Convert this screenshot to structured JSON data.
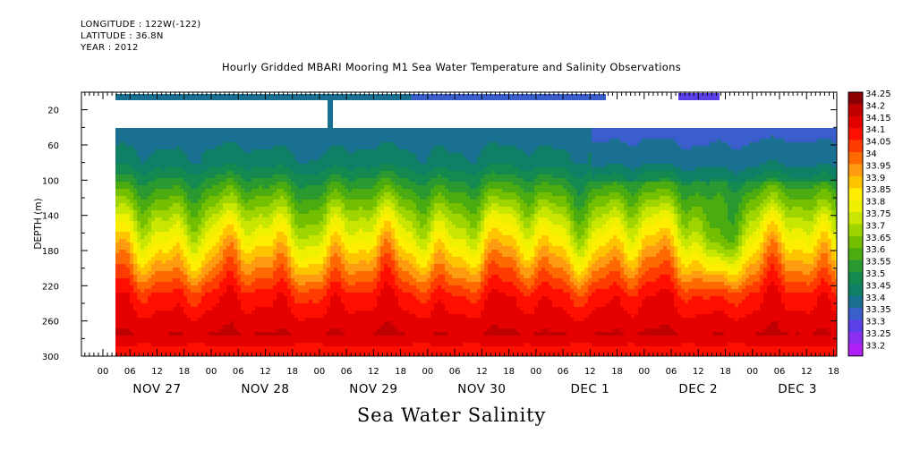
{
  "header": {
    "longitude": "LONGITUDE : 122W(-122)",
    "latitude": "LATITUDE : 36.8N",
    "year": "YEAR : 2012",
    "title": "Hourly Gridded MBARI Mooring M1 Sea Water Temperature and Salinity Observations"
  },
  "subtitle": "Sea Water Salinity",
  "chart_data": {
    "type": "heatmap",
    "title": "Hourly Gridded MBARI Mooring M1 Sea Water Temperature and Salinity Observations",
    "subtitle": "Sea Water Salinity",
    "xlabel": "",
    "ylabel": "DEPTH (m)",
    "x_range_hours": [
      0,
      156
    ],
    "x_ticks": {
      "hour_labels": [
        "00",
        "06",
        "12",
        "18",
        "00",
        "06",
        "12",
        "18",
        "00",
        "06",
        "12",
        "18",
        "00",
        "06",
        "12",
        "18",
        "00",
        "06",
        "12",
        "18",
        "00",
        "06",
        "12",
        "18",
        "00",
        "06",
        "12",
        "18"
      ],
      "hour_values": [
        0,
        6,
        12,
        18,
        24,
        30,
        36,
        42,
        48,
        54,
        60,
        66,
        72,
        78,
        84,
        90,
        96,
        102,
        108,
        114,
        120,
        126,
        132,
        138,
        144,
        150,
        156,
        162
      ],
      "day_labels": [
        {
          "label": "NOV 27",
          "hour": 12
        },
        {
          "label": "NOV 28",
          "hour": 36
        },
        {
          "label": "NOV 29",
          "hour": 60
        },
        {
          "label": "NOV 30",
          "hour": 84
        },
        {
          "label": "DEC  1",
          "hour": 108
        },
        {
          "label": "DEC  2",
          "hour": 132
        },
        {
          "label": "DEC  3",
          "hour": 154
        }
      ]
    },
    "y_range": [
      300,
      0
    ],
    "y_ticks": [
      20,
      60,
      100,
      140,
      180,
      220,
      260,
      300
    ],
    "colorbar": {
      "levels": [
        34.25,
        34.2,
        34.15,
        34.1,
        34.05,
        34,
        33.95,
        33.9,
        33.85,
        33.8,
        33.75,
        33.7,
        33.65,
        33.6,
        33.55,
        33.5,
        33.45,
        33.4,
        33.35,
        33.3,
        33.25,
        33.2
      ],
      "colors": [
        "#8b0000",
        "#c00000",
        "#e50000",
        "#ff0f00",
        "#ff3c00",
        "#ff6a00",
        "#ff9b10",
        "#ffc400",
        "#ffee00",
        "#eef000",
        "#c8e600",
        "#9ed400",
        "#74c000",
        "#4aac10",
        "#2a9a30",
        "#158a50",
        "#0f8066",
        "#1a7090",
        "#3a5ecc",
        "#5a40e6",
        "#8a2ef0",
        "#b020f5"
      ]
    },
    "series_description": [
      {
        "depth_band": "40-100",
        "salinity": 33.45
      },
      {
        "depth_band": "100-150",
        "salinity": 33.6
      },
      {
        "depth_band": "150-200",
        "salinity": 33.85
      },
      {
        "depth_band": "200-240",
        "salinity": 34.05
      },
      {
        "depth_band": "240-280",
        "salinity": 34.15
      },
      {
        "depth_band": "280-300",
        "salinity": 34.1
      }
    ]
  }
}
